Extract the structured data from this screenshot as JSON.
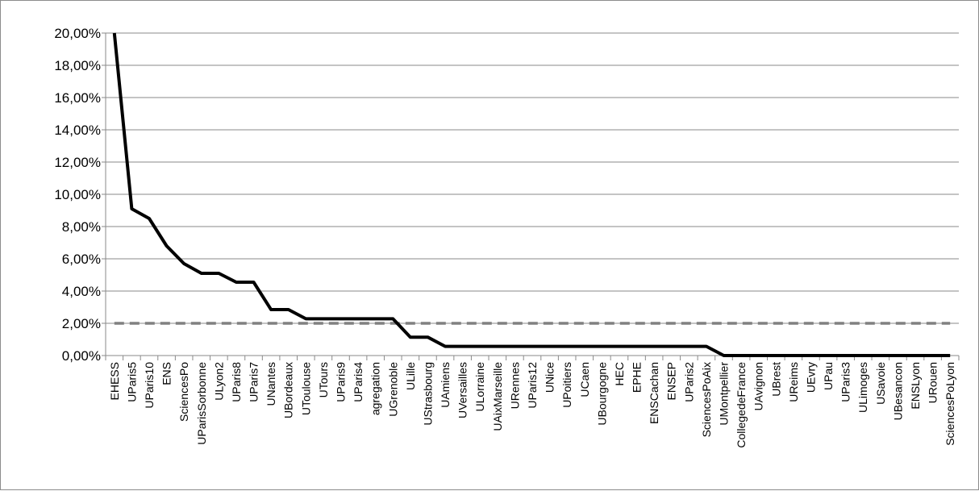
{
  "chart_data": {
    "type": "line",
    "title": "",
    "xlabel": "",
    "ylabel": "",
    "ylim": [
      0,
      0.2
    ],
    "y_tick_values": [
      0,
      0.02,
      0.04,
      0.06,
      0.08,
      0.1,
      0.12,
      0.14,
      0.16,
      0.18,
      0.2
    ],
    "y_tick_labels": [
      "0,00%",
      "2,00%",
      "4,00%",
      "6,00%",
      "8,00%",
      "10,00%",
      "12,00%",
      "14,00%",
      "16,00%",
      "18,00%",
      "20,00%"
    ],
    "grid": true,
    "legend": "none",
    "categories": [
      "EHESS",
      "UParis5",
      "UParis10",
      "ENS",
      "SciencesPo",
      "UParisSorbonne",
      "ULyon2",
      "UParis8",
      "UParis7",
      "UNantes",
      "UBordeaux",
      "UToulouse",
      "UTours",
      "UParis9",
      "UParis4",
      "agregation",
      "UGrenoble",
      "ULille",
      "UStrasbourg",
      "UAmiens",
      "UVersailles",
      "ULorraine",
      "UAixMarseille",
      "URennes",
      "UParis12",
      "UNice",
      "UPoitiers",
      "UCaen",
      "UBourgogne",
      "HEC",
      "EPHE",
      "ENSCachan",
      "ENSEP",
      "UParis2",
      "SciencesPoAix",
      "UMontpellier",
      "CollegedeFrance",
      "UAvignon",
      "UBrest",
      "UReims",
      "UEvry",
      "UPau",
      "UParis3",
      "ULimoges",
      "USavoie",
      "UBesancon",
      "ENSLyon",
      "URouen",
      "SciencesPoLyon"
    ],
    "series": [
      {
        "style": "solid",
        "color": "#000000",
        "values": [
          0.2,
          0.091,
          0.085,
          0.068,
          0.057,
          0.051,
          0.051,
          0.0455,
          0.0455,
          0.0285,
          0.0285,
          0.0228,
          0.0228,
          0.0228,
          0.0228,
          0.0228,
          0.0228,
          0.0114,
          0.0114,
          0.0057,
          0.0057,
          0.0057,
          0.0057,
          0.0057,
          0.0057,
          0.0057,
          0.0057,
          0.0057,
          0.0057,
          0.0057,
          0.0057,
          0.0057,
          0.0057,
          0.0057,
          0.0057,
          0,
          0,
          0,
          0,
          0,
          0,
          0,
          0,
          0,
          0,
          0,
          0,
          0,
          0
        ]
      },
      {
        "style": "dashed",
        "color": "#808080",
        "values": [
          0.02,
          0.02,
          0.02,
          0.02,
          0.02,
          0.02,
          0.02,
          0.02,
          0.02,
          0.02,
          0.02,
          0.02,
          0.02,
          0.02,
          0.02,
          0.02,
          0.02,
          0.02,
          0.02,
          0.02,
          0.02,
          0.02,
          0.02,
          0.02,
          0.02,
          0.02,
          0.02,
          0.02,
          0.02,
          0.02,
          0.02,
          0.02,
          0.02,
          0.02,
          0.02,
          0.02,
          0.02,
          0.02,
          0.02,
          0.02,
          0.02,
          0.02,
          0.02,
          0.02,
          0.02,
          0.02,
          0.02,
          0.02,
          0.02
        ]
      }
    ]
  }
}
